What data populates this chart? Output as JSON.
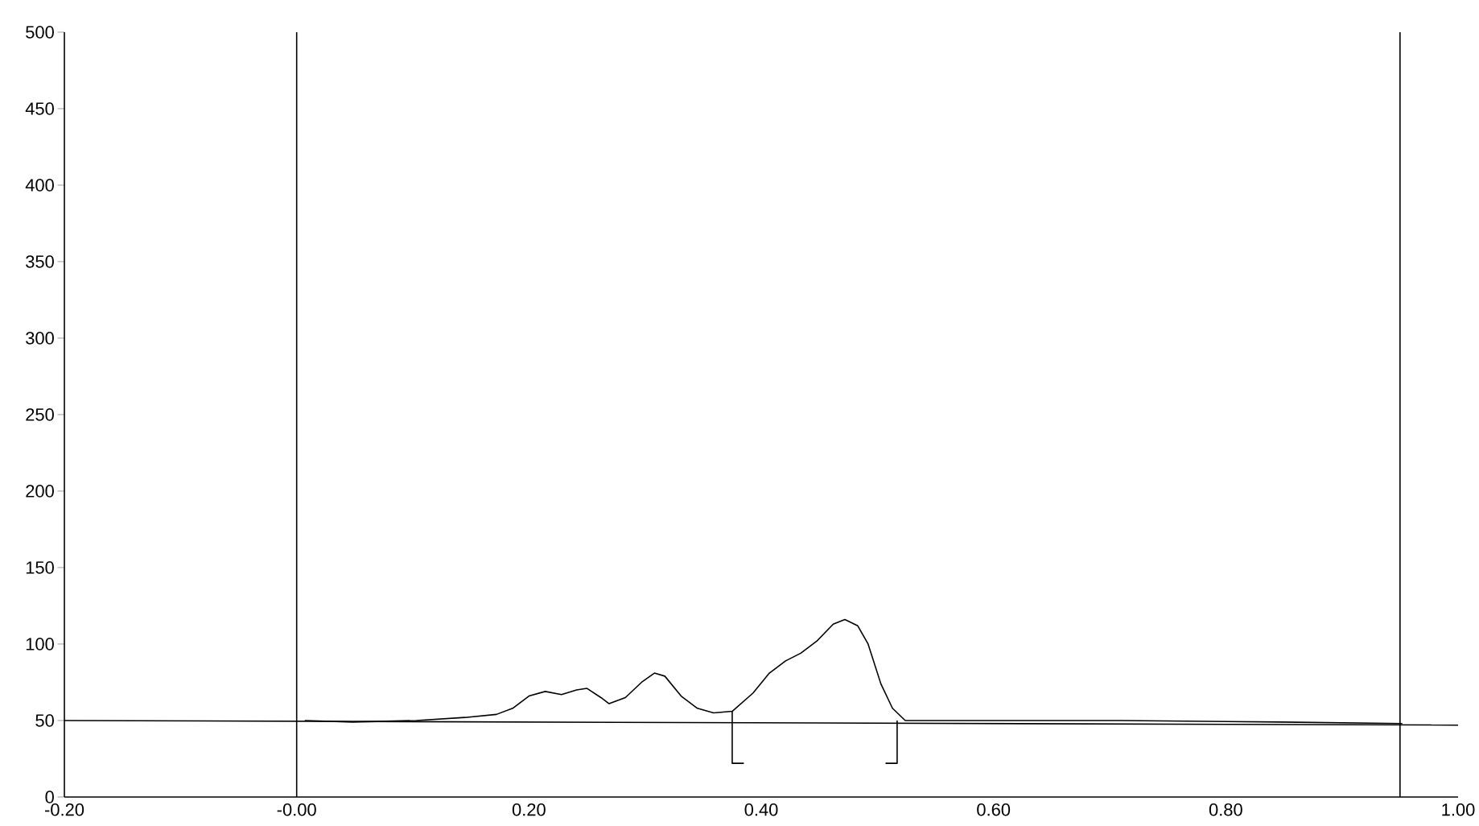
{
  "chart_data": {
    "type": "line",
    "xlim": [
      -0.2,
      1.0
    ],
    "ylim": [
      0,
      500
    ],
    "xticks": [
      {
        "value": -0.2,
        "label": "-0.20"
      },
      {
        "value": 0,
        "label": "-0.00"
      },
      {
        "value": 0.2,
        "label": "0.20"
      },
      {
        "value": 0.4,
        "label": "0.40"
      },
      {
        "value": 0.6,
        "label": "0.60"
      },
      {
        "value": 0.8,
        "label": "0.80"
      },
      {
        "value": 1.0,
        "label": "1.00"
      }
    ],
    "yticks": [
      0,
      50,
      100,
      150,
      200,
      250,
      300,
      350,
      400,
      450,
      500
    ],
    "series": [
      {
        "color": "#000000",
        "x": [
          0.007,
          0.048,
          0.103,
          0.145,
          0.172,
          0.186,
          0.2,
          0.214,
          0.228,
          0.241,
          0.25,
          0.262,
          0.269,
          0.283,
          0.297,
          0.308,
          0.317,
          0.331,
          0.345,
          0.359,
          0.375,
          0.393,
          0.407,
          0.421,
          0.434,
          0.448,
          0.462,
          0.472,
          0.483,
          0.492,
          0.503,
          0.513,
          0.524,
          0.572,
          0.71,
          0.848,
          0.952
        ],
        "values": [
          50,
          49,
          50,
          52,
          54,
          58,
          66,
          69,
          67,
          70,
          71,
          65,
          61,
          65,
          75,
          81,
          79,
          66,
          58,
          55,
          56,
          68,
          81,
          89,
          94,
          102,
          113,
          116,
          112,
          100,
          74,
          58,
          50,
          50,
          50,
          49,
          48
        ]
      },
      {
        "color": "#000000",
        "x": [
          -0.2,
          1.0
        ],
        "values": [
          50,
          47
        ]
      },
      {
        "color": "#000000",
        "x": [
          0.375,
          0.375,
          0.385
        ],
        "values": [
          56,
          22,
          22
        ]
      },
      {
        "color": "#000000",
        "x": [
          0.507,
          0.517,
          0.517
        ],
        "values": [
          22,
          22,
          50
        ]
      }
    ],
    "ref_lines": [
      {
        "axis": "x",
        "value": 0,
        "color": "#000000"
      },
      {
        "axis": "x",
        "value": 0.95,
        "color": "#000000"
      }
    ]
  }
}
